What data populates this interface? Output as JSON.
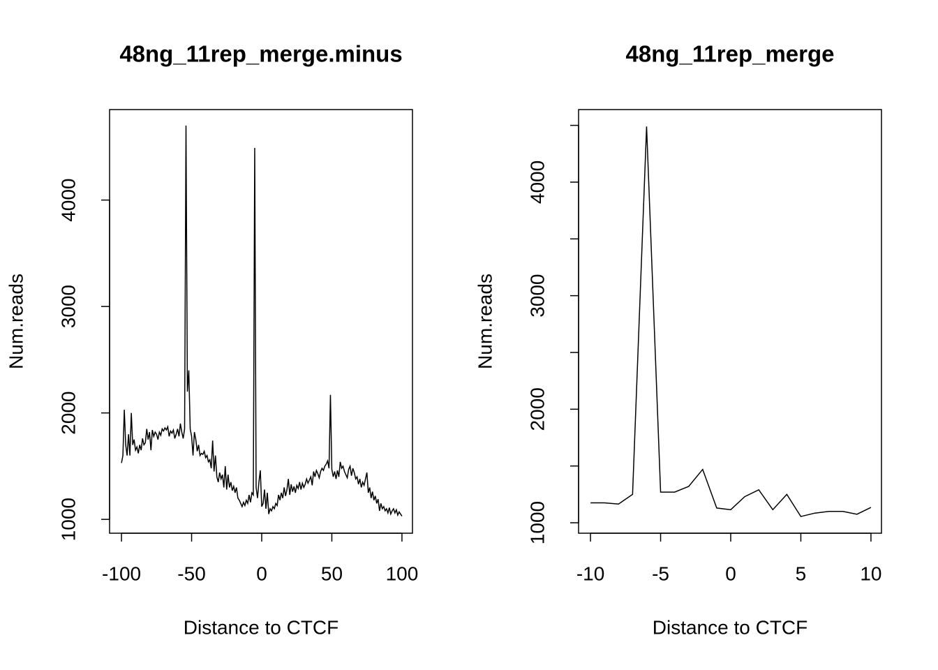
{
  "chart_data": [
    {
      "type": "line",
      "title": "48ng_11rep_merge.minus",
      "xlabel": "Distance to CTCF",
      "ylabel": "Num.reads",
      "color": "#000000",
      "x": [
        -100,
        -99,
        -98,
        -97,
        -96,
        -95,
        -94,
        -93,
        -92,
        -91,
        -90,
        -89,
        -88,
        -87,
        -86,
        -85,
        -84,
        -83,
        -82,
        -81,
        -80,
        -79,
        -78,
        -77,
        -76,
        -75,
        -74,
        -73,
        -72,
        -71,
        -70,
        -69,
        -68,
        -67,
        -66,
        -65,
        -64,
        -63,
        -62,
        -61,
        -60,
        -59,
        -58,
        -57,
        -56,
        -55,
        -54,
        -53,
        -52,
        -51,
        -50,
        -49,
        -48,
        -47,
        -46,
        -45,
        -44,
        -43,
        -42,
        -41,
        -40,
        -39,
        -38,
        -37,
        -36,
        -35,
        -34,
        -33,
        -32,
        -31,
        -30,
        -29,
        -28,
        -27,
        -26,
        -25,
        -24,
        -23,
        -22,
        -21,
        -20,
        -19,
        -18,
        -17,
        -16,
        -15,
        -14,
        -13,
        -12,
        -11,
        -10,
        -9,
        -8,
        -7,
        -6,
        -5,
        -4,
        -3,
        -2,
        -1,
        0,
        1,
        2,
        3,
        4,
        5,
        6,
        7,
        8,
        9,
        10,
        11,
        12,
        13,
        14,
        15,
        16,
        17,
        18,
        19,
        20,
        21,
        22,
        23,
        24,
        25,
        26,
        27,
        28,
        29,
        30,
        31,
        32,
        33,
        34,
        35,
        36,
        37,
        38,
        39,
        40,
        41,
        42,
        43,
        44,
        45,
        46,
        47,
        48,
        49,
        50,
        51,
        52,
        53,
        54,
        55,
        56,
        57,
        58,
        59,
        60,
        61,
        62,
        63,
        64,
        65,
        66,
        67,
        68,
        69,
        70,
        71,
        72,
        73,
        74,
        75,
        76,
        77,
        78,
        79,
        80,
        81,
        82,
        83,
        84,
        85,
        86,
        87,
        88,
        89,
        90,
        91,
        92,
        93,
        94,
        95,
        96,
        97,
        98,
        99,
        100
      ],
      "values": [
        1530,
        1600,
        2030,
        1700,
        1600,
        1800,
        1600,
        2000,
        1700,
        1750,
        1650,
        1680,
        1620,
        1700,
        1650,
        1760,
        1700,
        1720,
        1850,
        1750,
        1820,
        1650,
        1840,
        1780,
        1820,
        1800,
        1750,
        1820,
        1790,
        1850,
        1830,
        1860,
        1840,
        1870,
        1780,
        1830,
        1810,
        1840,
        1760,
        1800,
        1850,
        1780,
        1900,
        1820,
        1760,
        1850,
        4700,
        2200,
        2400,
        1850,
        1780,
        1600,
        1820,
        1750,
        1640,
        1700,
        1600,
        1620,
        1610,
        1640,
        1580,
        1600,
        1540,
        1560,
        1480,
        1740,
        1450,
        1600,
        1400,
        1350,
        1440,
        1380,
        1420,
        1300,
        1500,
        1280,
        1420,
        1300,
        1350,
        1270,
        1310,
        1250,
        1300,
        1200,
        1180,
        1150,
        1120,
        1160,
        1130,
        1180,
        1150,
        1230,
        1160,
        1250,
        1230,
        4490,
        1300,
        1200,
        1350,
        1460,
        1120,
        1150,
        1280,
        1100,
        1250,
        1050,
        1100,
        1080,
        1120,
        1100,
        1150,
        1130,
        1230,
        1180,
        1250,
        1200,
        1300,
        1220,
        1280,
        1380,
        1230,
        1330,
        1260,
        1310,
        1250,
        1320,
        1290,
        1350,
        1280,
        1340,
        1300,
        1330,
        1380,
        1340,
        1370,
        1400,
        1320,
        1450,
        1400,
        1460,
        1430,
        1390,
        1450,
        1480,
        1460,
        1500,
        1520,
        1550,
        1480,
        2170,
        1470,
        1400,
        1450,
        1380,
        1460,
        1400,
        1540,
        1480,
        1500,
        1450,
        1420,
        1390,
        1470,
        1500,
        1410,
        1480,
        1440,
        1380,
        1400,
        1330,
        1380,
        1300,
        1350,
        1320,
        1380,
        1440,
        1250,
        1300,
        1200,
        1260,
        1180,
        1220,
        1150,
        1190,
        1080,
        1150,
        1100,
        1120,
        1080,
        1100,
        1060,
        1110,
        1050,
        1080,
        1100,
        1060,
        1090,
        1040,
        1070,
        1050,
        1030
      ],
      "xlim": [
        -108.5,
        107.5
      ],
      "ylim": [
        870,
        4850
      ],
      "xticks": [
        -100,
        -50,
        0,
        50,
        100
      ],
      "yticks": [
        1000,
        2000,
        3000,
        4000
      ]
    },
    {
      "type": "line",
      "title": "48ng_11rep_merge",
      "xlabel": "Distance to CTCF",
      "ylabel": "Num.reads",
      "color": "#000000",
      "x": [
        -10,
        -9,
        -8,
        -7,
        -6,
        -5,
        -4,
        -3,
        -2,
        -1,
        0,
        1,
        2,
        3,
        4,
        5,
        6,
        7,
        8,
        9,
        10
      ],
      "values": [
        1175,
        1175,
        1165,
        1250,
        4490,
        1270,
        1270,
        1320,
        1470,
        1130,
        1115,
        1230,
        1290,
        1115,
        1250,
        1055,
        1085,
        1100,
        1100,
        1075,
        1135
      ],
      "xlim": [
        -10.85,
        10.75
      ],
      "ylim": [
        908,
        4639
      ],
      "xticks": [
        -10,
        -5,
        0,
        5,
        10
      ],
      "yticks": [
        1000,
        2000,
        3000,
        4000
      ],
      "yminor_ticks": [
        1500,
        2500,
        3500,
        4500
      ]
    }
  ]
}
